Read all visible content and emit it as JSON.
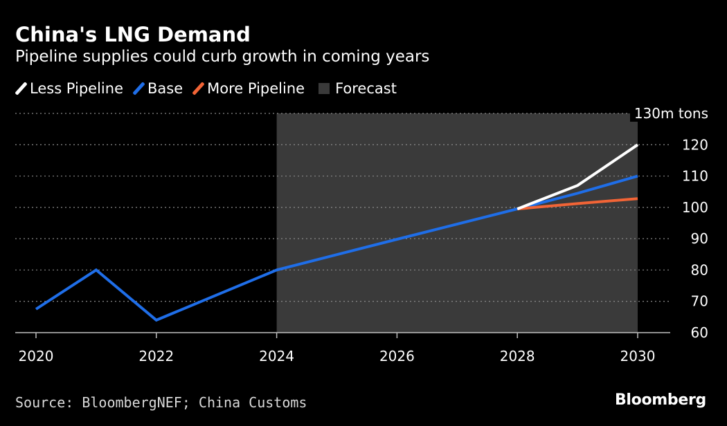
{
  "header": {
    "title": "China's LNG Demand",
    "subtitle": "Pipeline supplies could curb growth in coming years"
  },
  "legend": {
    "items": [
      {
        "label": "Less Pipeline",
        "color": "#ffffff",
        "shape": "slash"
      },
      {
        "label": "Base",
        "color": "#1f6ee8",
        "shape": "slash"
      },
      {
        "label": "More Pipeline",
        "color": "#f26436",
        "shape": "slash"
      },
      {
        "label": "Forecast",
        "color": "#3a3a3a",
        "shape": "box"
      }
    ]
  },
  "footer": {
    "source": "Source: BloombergNEF; China Customs",
    "logo": "Bloomberg"
  },
  "chart_data": {
    "type": "line",
    "title": "China's LNG Demand",
    "subtitle": "Pipeline supplies could curb growth in coming years",
    "xlabel": "",
    "ylabel": "m tons",
    "xlim": [
      2020,
      2030
    ],
    "ylim": [
      60,
      130
    ],
    "x_ticks": [
      2020,
      2022,
      2024,
      2026,
      2028,
      2030
    ],
    "y_ticks": [
      60,
      70,
      80,
      90,
      100,
      110,
      120,
      130
    ],
    "y_tick_labels": [
      "60",
      "70",
      "80",
      "90",
      "100",
      "110",
      "120",
      "130m tons"
    ],
    "grid": "horizontal-dotted",
    "legend_position": "top-left",
    "forecast_region": {
      "label": "Forecast",
      "x_start": 2024,
      "x_end": 2030
    },
    "series": [
      {
        "name": "Base",
        "color": "#1f6ee8",
        "points": [
          [
            2020,
            67.5
          ],
          [
            2021,
            80
          ],
          [
            2022,
            64
          ],
          [
            2024,
            80
          ],
          [
            2026,
            89.8
          ],
          [
            2028,
            99.5
          ],
          [
            2029,
            104.5
          ],
          [
            2030,
            110
          ]
        ]
      },
      {
        "name": "Less Pipeline",
        "color": "#ffffff",
        "points": [
          [
            2028,
            99.5
          ],
          [
            2029,
            107
          ],
          [
            2030,
            120
          ]
        ]
      },
      {
        "name": "More Pipeline",
        "color": "#f26436",
        "points": [
          [
            2028,
            99.5
          ],
          [
            2029,
            101.2
          ],
          [
            2030,
            102.8
          ]
        ]
      }
    ]
  }
}
